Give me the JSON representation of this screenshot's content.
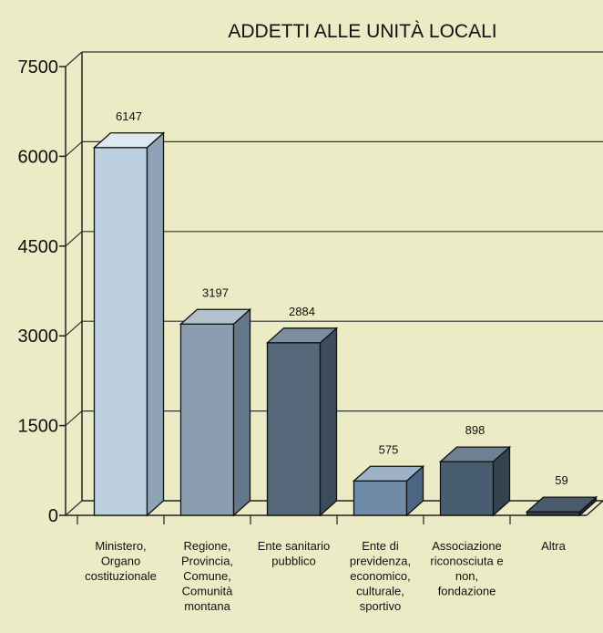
{
  "chart_data": {
    "type": "bar",
    "title": "ADDETTI ALLE UNITÀ LOCALI",
    "categories": [
      [
        "Ministero,",
        "Organo",
        "costituzionale"
      ],
      [
        "Regione,",
        "Provincia,",
        "Comune,",
        "Comunità",
        "montana"
      ],
      [
        "Ente sanitario",
        "pubblico"
      ],
      [
        "Ente di",
        "previdenza,",
        "economico,",
        "culturale,",
        "sportivo"
      ],
      [
        "Associazione",
        "riconosciuta e",
        "non,",
        "fondazione"
      ],
      [
        "Altra"
      ]
    ],
    "values": [
      6147,
      3197,
      2884,
      575,
      898,
      59
    ],
    "value_labels": [
      "6147",
      "3197",
      "2884",
      "575",
      "898",
      "59"
    ],
    "yticks": [
      0,
      1500,
      3000,
      4500,
      6000,
      7500
    ],
    "ytick_labels": [
      "0",
      "1500",
      "3000",
      "4500",
      "6000",
      "7500"
    ],
    "ylim": [
      0,
      7500
    ],
    "grid": true,
    "bar_colors": [
      {
        "front": "#bcd0e0",
        "side": "#8ea4b6",
        "top": "#dde8f0"
      },
      {
        "front": "#8b9eaf",
        "side": "#64788a",
        "top": "#b3c1cd"
      },
      {
        "front": "#56687a",
        "side": "#3c4c5c",
        "top": "#7d8e9e"
      },
      {
        "front": "#6f8ba8",
        "side": "#4c6783",
        "top": "#9db2c7"
      },
      {
        "front": "#495d70",
        "side": "#33434f",
        "top": "#6e8194"
      },
      {
        "front": "#2f3f4f",
        "side": "#202c38",
        "top": "#4a5b6b"
      }
    ]
  }
}
